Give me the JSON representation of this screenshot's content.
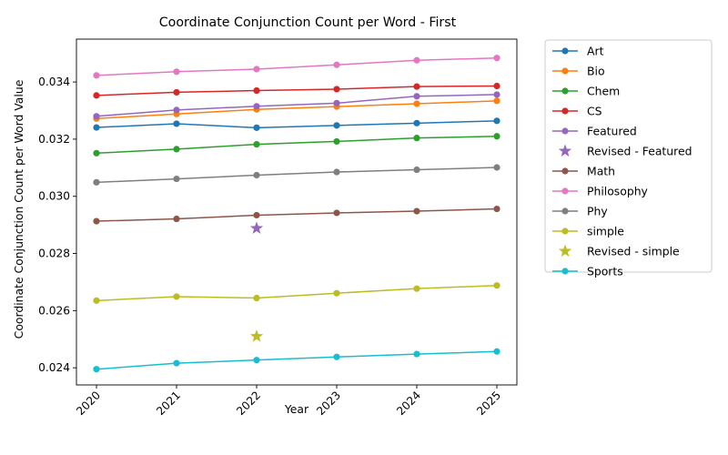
{
  "chart_data": {
    "type": "line",
    "title": "Coordinate Conjunction Count per Word - First",
    "xlabel": "Year",
    "ylabel": "Coordinate Conjunction Count per Word Value",
    "x": [
      "2020",
      "2021",
      "2022",
      "2023",
      "2024",
      "2025"
    ],
    "y_ticks": [
      "0.024",
      "0.026",
      "0.028",
      "0.030",
      "0.032",
      "0.034"
    ],
    "ylim": [
      0.0234,
      0.0355
    ],
    "grid": false,
    "legend_position": "outside-right",
    "series": [
      {
        "name": "Art",
        "kind": "line",
        "color": "#1f77b4",
        "values": [
          0.03241,
          0.03254,
          0.0324,
          0.03248,
          0.03256,
          0.03264
        ]
      },
      {
        "name": "Bio",
        "kind": "line",
        "color": "#ff7f0e",
        "values": [
          0.03272,
          0.03288,
          0.03304,
          0.03314,
          0.03324,
          0.03334
        ]
      },
      {
        "name": "Chem",
        "kind": "line",
        "color": "#2ca02c",
        "values": [
          0.03151,
          0.03165,
          0.03182,
          0.03192,
          0.03204,
          0.0321
        ]
      },
      {
        "name": "CS",
        "kind": "line",
        "color": "#d62728",
        "values": [
          0.03353,
          0.03364,
          0.0337,
          0.03375,
          0.03384,
          0.03386
        ]
      },
      {
        "name": "Featured",
        "kind": "line",
        "color": "#9467bd",
        "values": [
          0.0328,
          0.03302,
          0.03315,
          0.03326,
          0.0335,
          0.03356
        ]
      },
      {
        "name": "Revised - Featured",
        "kind": "star",
        "color": "#9467bd",
        "x_index": 2,
        "value": 0.02888
      },
      {
        "name": "Math",
        "kind": "line",
        "color": "#8c564b",
        "values": [
          0.02913,
          0.02921,
          0.02934,
          0.02942,
          0.02948,
          0.02956
        ]
      },
      {
        "name": "Philosophy",
        "kind": "line",
        "color": "#e377c2",
        "values": [
          0.03423,
          0.03436,
          0.03445,
          0.0346,
          0.03476,
          0.03484
        ]
      },
      {
        "name": "Phy",
        "kind": "line",
        "color": "#7f7f7f",
        "values": [
          0.03049,
          0.03061,
          0.03074,
          0.03085,
          0.03093,
          0.03101
        ]
      },
      {
        "name": "simple",
        "kind": "line",
        "color": "#bcbd22",
        "values": [
          0.02635,
          0.02649,
          0.02644,
          0.02661,
          0.02677,
          0.02688
        ]
      },
      {
        "name": "Revised - simple",
        "kind": "star",
        "color": "#bcbd22",
        "x_index": 2,
        "value": 0.0251
      },
      {
        "name": "Sports",
        "kind": "line",
        "color": "#17becf",
        "values": [
          0.02395,
          0.02416,
          0.02427,
          0.02438,
          0.02448,
          0.02457
        ]
      }
    ]
  }
}
